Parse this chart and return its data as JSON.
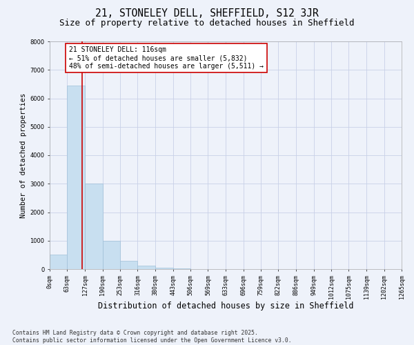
{
  "title1": "21, STONELEY DELL, SHEFFIELD, S12 3JR",
  "title2": "Size of property relative to detached houses in Sheffield",
  "xlabel": "Distribution of detached houses by size in Sheffield",
  "ylabel": "Number of detached properties",
  "footnote": "Contains HM Land Registry data © Crown copyright and database right 2025.\nContains public sector information licensed under the Open Government Licence v3.0.",
  "bin_labels": [
    "0sqm",
    "63sqm",
    "127sqm",
    "190sqm",
    "253sqm",
    "316sqm",
    "380sqm",
    "443sqm",
    "506sqm",
    "569sqm",
    "633sqm",
    "696sqm",
    "759sqm",
    "822sqm",
    "886sqm",
    "949sqm",
    "1012sqm",
    "1075sqm",
    "1139sqm",
    "1202sqm",
    "1265sqm"
  ],
  "bin_edges": [
    0,
    63,
    127,
    190,
    253,
    316,
    380,
    443,
    506,
    569,
    633,
    696,
    759,
    822,
    886,
    949,
    1012,
    1075,
    1139,
    1202,
    1265
  ],
  "bar_values": [
    500,
    6450,
    3000,
    1000,
    300,
    120,
    60,
    30,
    0,
    0,
    0,
    0,
    0,
    0,
    0,
    0,
    0,
    0,
    0,
    0
  ],
  "bar_color": "#c8dff0",
  "bar_edge_color": "#a0c0d8",
  "vline_x": 116,
  "vline_color": "#cc0000",
  "annotation_text": "21 STONELEY DELL: 116sqm\n← 51% of detached houses are smaller (5,832)\n48% of semi-detached houses are larger (5,511) →",
  "annotation_box_facecolor": "#ffffff",
  "annotation_box_edgecolor": "#cc0000",
  "ylim": [
    0,
    8000
  ],
  "yticks": [
    0,
    1000,
    2000,
    3000,
    4000,
    5000,
    6000,
    7000,
    8000
  ],
  "background_color": "#eef2fa",
  "grid_color": "#c8d0e8",
  "title1_fontsize": 10.5,
  "title2_fontsize": 9,
  "xlabel_fontsize": 8.5,
  "ylabel_fontsize": 7.5,
  "tick_fontsize": 6,
  "annotation_fontsize": 7,
  "footnote_fontsize": 5.8
}
